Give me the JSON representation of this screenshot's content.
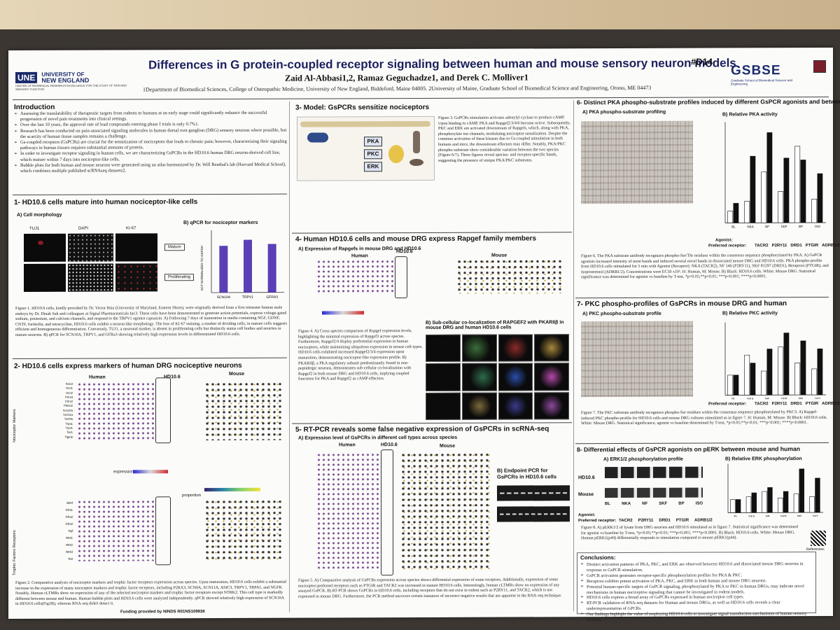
{
  "header": {
    "title": "Differences in G protein-coupled receptor signaling between human and mouse sensory neuron models",
    "poster_id": "#D14",
    "authors": "Zaid Al-Abbasi1,2, Ramaz Geguchadze1, and Derek C. Molliver1",
    "affiliations": "1Department of Biomedical Sciences, College of Osteopathic Medicine, University of New England, Biddeford, Maine 04005. 2University of Maine, Graduate School of Biomedical Science and Engineering, Orono, ME 04473",
    "une_logo": "UNE",
    "une_name_1": "UNIVERSITY OF",
    "une_name_2": "NEW ENGLAND",
    "une_center": "CENTER OF BIOMEDICAL RESEARCH EXCELLENCE FOR THE STUDY OF PAIN AND SENSORY FUNCTION",
    "gsbse_logo": "GSBSE",
    "gsbse_sub": "Graduate School of Biomedical Science and Engineering"
  },
  "intro": {
    "heading": "Introduction",
    "bullets": [
      "Assessing the translatability of therapeutic targets from rodents to humans at an early stage could significantly enhance the successful progression of novel pain treatments into clinical settings.",
      "Over the last 10 years, the approval rate of lead compounds entering phase I trials is only 0.7%1.",
      "Research has been conducted on pain-associated signaling molecules in human dorsal root ganglion (DRG) sensory neurons where possible, but the scarcity of human tissue samples remains a challenge.",
      "Gs-coupled receptors (GsPCRs) are crucial for the sensitization of nociceptors that leads to chronic pain; however, characterizing their signaling pathways in human tissues requires substantial amounts of protein.",
      "In order to investigate receptor signaling in human cells, we are characterizing GsPCRs in the HD10.6 human DRG neuron-derived cell line, which mature within 7 days into nociceptor-like cells.",
      "Bubble plots for both human and mouse neurons were generated using an atlas harmonized by Dr. Will Renthal's lab (Harvard Medical School), which combines multiple published scRNAseq datasets2."
    ]
  },
  "s1": {
    "heading": "1- HD10.6 cells mature into human nociceptor-like cells",
    "a_label": "A) Cell morphology",
    "b_label": "B) qPCR for nociceptor markers",
    "stains": [
      "TUJ1",
      "DAPI",
      "KI-67"
    ],
    "rows": [
      "Mature",
      "Proliferating"
    ],
    "ylabel": "ACT NORMALIZED TO GAPDH",
    "caption": "Figure 1. HD10.6 cells, kindly provided by Dr. Victor Hsia (University of Maryland, Eastern Shore), were originally derived from a first trimester human male embryo by Dr. Dinah Sah and colleagues at Signal Pharmaceuticals Inc3. These cells have been demonstrated to generate action potentials, express voltage-gated sodium, potassium, and calcium channels, and respond to the TRPV1 agonist capsaicin. A) Following 7 days of maturation in media containing NGF, GDNF, CNTF, forskolin, and tetracycline, HD10.6 cells exhibit a neuron-like morphology. The loss of KI-67 staining, a marker of dividing cells, in mature cells suggests efficient and homogeneous differentiation. Conversely, TUJ1, a neuronal marker, is absent in proliferating cells but distinctly stains cell bodies and neurites in mature neurons. B) qPCR for SCN10A, TRPV1, and GFRa3 showing relatively high expression levels in differentiated HD10.6 cells."
  },
  "s2": {
    "heading": "2- HD10.6 cells express markers of human DRG nociceptive neurons",
    "human": "Human",
    "hd": "HD10.6",
    "mouse": "Mouse",
    "row_label_1": "Nociceptor Markers",
    "row_label_2": "Trophic Factors Receptors",
    "genes_1": [
      "Asic3",
      "Hcn1",
      "Hcn2",
      "P2rx3",
      "P2rx2",
      "Piezo2",
      "Scn10a",
      "Scn11a",
      "Scn9a",
      "Trpa1",
      "Trpv1",
      "Tac1",
      "Tlgmb"
    ],
    "genes_2": [
      "Bdnf",
      "Gfra1",
      "Gfra2",
      "Gfra3",
      "Ngf",
      "Ntrk1",
      "Ntrk2",
      "Ntrk3",
      "Ret"
    ],
    "expression": "expression",
    "proportion": "proportion",
    "caption": "Figure 2. Comparative analysis of nociceptor markers and trophic factor receptors expression across species. Upon maturation, HD10.6 cells exhibit a substantial increase in the expression of many nociceptor markers and trophic factor receptors, including P2RX3, SCN9A, SCN11A, ASIC3, TRPV1, TRPA1, and NGFR. Notably, Human cLTMRs show no expression of any of the selected nociceptor markers and trophic factor receptors except NTRK2. This cell type is markedly different between mouse and human. Human bubble plots and HD10.6 cells were analyzed independently. qPCR showed relatively high expression of SCN10A in HD10.6 cells(Fig1B), whereas RNA-seq didn't detect it.",
    "funding": "Funding provided by NINDS R01NS109936"
  },
  "s3": {
    "heading": "3- Model: GsPCRs sensitize nociceptors",
    "nodes": [
      "PKA",
      "PKC",
      "ERK"
    ],
    "caption": "Figure 3. GsPCRs stimulation activates adenylyl cyclase to produce cAMP. Upon binding to cAMP, PKA and Rapgef2/3/4/6 become active. Subsequently, PKC and ERK are activated downstream of Rapgefs, which, along with PKA, phosphorylate ion channels, modulating nociceptor sensitization. Despite the common activation of these kinases due to Gs-coupled stimulation in both humans and mice, the downstream effectors may differ. Notably, PKA/PKC phospho-substrate show considerable variation between the two species (Figure 6/7). These figures reveal species- and receptor-specific bands, suggesting the presence of unique PKA/PKC substrates."
  },
  "s4": {
    "heading": "4- Human HD10.6 cells and mouse DRG express Rapgef family members",
    "a_label": "A) Expression of Rapgefs in mouse DRG and HD10.6",
    "human": "Human",
    "hd": "HD10.6",
    "mouse": "Mouse",
    "b_label": "B) Sub-cellular co-localization of RAPGEF2 with PKARIIβ in mouse DRG and human HD10.6 cells",
    "caption": "Figure 4. A) Cross-species comparison of Rapgef expression levels, highlighting the minimal expression of Rapgef3 across species. Furthermore, Rapgef2/4 display preferential expression in human nociceptors, while maintaining ubiquitous expression in mouse cell-types. HD10.6 cells exhibited increased Rapgef2/3/4 expression upon maturation, demonstrating nociceptor-like expression profile. B) PKARIIβ, a PKA regulatory subunit predominantly found in non-peptidergic neurons, demonstrates sub-cellular co-localization with Rapgef2 in both mouse DRG and HD10.6 cells, implying coupled functions for PKA and Rapgef2 as cAMP effectors."
  },
  "s5": {
    "heading": "5- RT-PCR reveals some false negative expression of GsPCRs in scRNA-seq",
    "a_label": "A) Expression level of GsPCRs in different cell types across species",
    "human": "Human",
    "hd": "HD10.6",
    "mouse": "Mouse",
    "b_label": "B) Endpoint PCR for GsPCRs in HD10.6 cells",
    "caption": "Figure 5. A) Comparative analysis of GsPCRs expression across species shows differential expression of some receptors. Additionally, expression of some nociceptor-preferred receptors such as PTGIR and TACR2 was increased in mature HD10.6 cells. Interestingly, human cLTMRs show no expression of any assayed GsPCR. B) RT-PCR shows GsPCRs in HD10.6 cells, including receptors that do not exist in rodent such as P2RY11, and TACR2, which is not expressed in mouse DRG. Furthermore, the PCR method uncovers certain instances of incorrect negative results that are apparent in the RNA-seq technique."
  },
  "s6": {
    "heading": "6- Distinct PKA phospho-substrate profiles induced by different GsPCR agonists and between species",
    "a_label": "A) PKA phospho-substrate profiling",
    "b_label": "B) Relative PKA activity",
    "agonist": "Agonist:",
    "receptor": "Preferred receptor:",
    "receptors": [
      "TACR2",
      "P2RY11",
      "DRD1",
      "PTGIR",
      "ADRB1/2"
    ],
    "caption": "Figure 6. The PKA substrate antibody recognizes phospho-Ser/Thr residues within the consensus sequence phosphorylated by PKA. A) GsPCR agonists increased intensity of most bands and induced several novel bands in dissociated mouse DRG and HD10.6 cells. PKA phospho-profile from HD10.6 cells stimulated for 5 min with Agonist (Receptor): NKA (TACR2), NF 546 (P2RY11), SKF 81297 (DRD1), Beraprost (PTGIR), and Isoproterenol (ADRB1/2). Concentrations were EC50 x10². H: Human, M: Mouse. B) Black: HD10.6 cells. White: Mouse DRG. Statistical significance was determined for agonist vs baseline by T-test, *p<0.05;**p<0.01; ***p<0.001; ****p<0.0001."
  },
  "s7": {
    "heading": "7- PKC phospho-profiles of GsPCRs in mouse DRG and human",
    "a_label": "A) PKC phospho-substrate profile",
    "b_label": "B) Relative PKC activity",
    "agonist": "Agonist:",
    "receptor": "Preferred receptor:",
    "receptors": [
      "TACR2",
      "P2RY11",
      "DRD1",
      "PTGIR",
      "ADRB1/2"
    ],
    "caption": "Figure 7. The PKC substrate antibody recognizes phospho-Ser residues within the consensus sequence phosphorylated by PKC3. A) Rapgef-induced PKC phospho-profile for HD10.6 cells and mouse DRG cultures stimulated as in figure 7. H: Human, M: Mouse. B) Black: HD10.6 cells. White: Mouse DRG. Statistical significance, agonist vs baseline determined by T-test, *p<0.05;**p<0.01; ***p<0.001; ****p<0.0001."
  },
  "s8": {
    "heading": "8- Differential effects of GsPCR agonists on pERK between mouse and human",
    "a_label": "A) ERK1/2 phosphorylation profile",
    "b_label": "B) Relative ERK phosphorylation",
    "row_hd": "HD10.6",
    "row_mouse": "Mouse",
    "agonist": "Agonist:",
    "receptor": "Preferred receptor:",
    "agonists": [
      "BL",
      "NKA",
      "NF",
      "SKF",
      "BP",
      "ISO"
    ],
    "receptors": [
      "TACR2",
      "P2RY11",
      "DRD1",
      "PTGIR",
      "ADRB1/2"
    ],
    "caption": "Figure 8. A) pERK1/2 of lysate from DRG neurons and HD10.6 stimulated as in figure 7. Statistical significance was determined for agonist vs baseline by T-test, *p<0.05;**p<0.01; ***p<0.001; ****p<0.0001. B) Black: HD10.6 cells. White: Mouse DRG. Human pERK1(p44) differentially responds to stimulation compared to mouse pERK1(p44).",
    "references": "References"
  },
  "conclusions": {
    "heading": "Conclusions:",
    "bullets": [
      "Distinct activation patterns of PKA, PKC, and ERK are observed between HD10.6 and dissociated mouse DRG neurons in response to GsPCR stimulation.",
      "GsPCR activation generates receptor-specific phosphorylation profiles for PKA & PKC.",
      "Beraprost exhibits potent activation of PKA, PKC, and ERK in both human and mouse DRG neurons.",
      "Potential human-specific targets of GsPCR signaling, phosphorylated by PKA or PKC in human DRGs, may indicate novel mechanisms in human nociceptive signaling that cannot be investigated in rodent models.",
      "HD10.6 cells express a broad array of GsPCRs expressed in human nociceptor cell types.",
      "RT-PCR validation of RNA-seq datasets for Human and mouse DRGs, as well as HD10.6 cells reveals a clear underrepresentation of GPCRs.",
      "Our findings highlight the value of employing HD10.6 cells to investigate signal transduction mechanisms of human sensory neurons."
    ]
  },
  "chart_data": [
    {
      "type": "bar",
      "name": "qPCR for nociceptor markers",
      "categories": [
        "SCN10A",
        "TRPV1",
        "GFRA3"
      ],
      "values": [
        5.5,
        6.2,
        5.7
      ],
      "ylim": [
        0,
        7
      ],
      "color": "#5b3fb6"
    },
    {
      "type": "bar",
      "name": "Relative PKA activity",
      "categories": [
        "BL",
        "NKA",
        "NF",
        "SKF",
        "BP",
        "ISO"
      ],
      "series": [
        {
          "values": [
            0.6,
            1.1,
            2.6,
            1.6,
            3.9,
            1.2
          ]
        },
        {
          "values": [
            1.0,
            3.4,
            4.6,
            3.3,
            3.2,
            2.5
          ]
        }
      ],
      "ylim": [
        0,
        5
      ]
    },
    {
      "type": "bar",
      "name": "Relative PKC activity",
      "categories": [
        "BL",
        "NKA",
        "NF",
        "SKF",
        "BP",
        "ISO"
      ],
      "series": [
        {
          "values": [
            1.0,
            2.0,
            1.2,
            2.4,
            1.6,
            1.3
          ]
        },
        {
          "values": [
            1.0,
            1.6,
            2.3,
            3.1,
            2.7,
            2.3
          ]
        }
      ],
      "ylim": [
        0,
        3.5
      ]
    },
    {
      "type": "bar",
      "name": "Relative ERK phosphorylation",
      "categories": [
        "BL",
        "NKA",
        "NF",
        "SKF",
        "BP",
        "ISO"
      ],
      "series": [
        {
          "values": [
            1.0,
            1.2,
            1.6,
            1.1,
            1.4,
            1.2
          ]
        },
        {
          "values": [
            1.0,
            1.5,
            1.9,
            1.6,
            3.3,
            2.6
          ]
        }
      ],
      "ylim": [
        0,
        3.5
      ]
    }
  ]
}
